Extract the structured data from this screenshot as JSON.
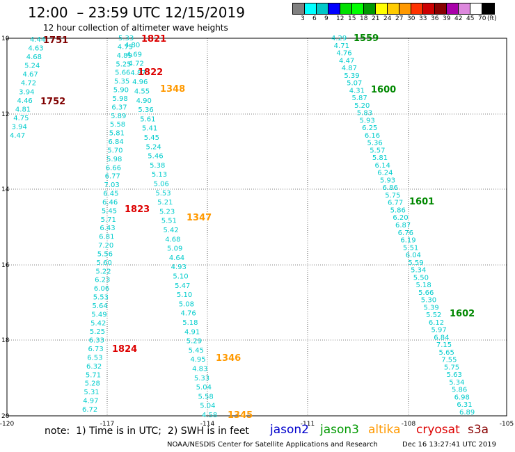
{
  "header": {
    "title": "12:00  – 23:59 UTC 12/15/2019",
    "subtitle": "12 hour collection of altimeter wave heights"
  },
  "color_scale": {
    "colors": [
      "#808080",
      "#00ffff",
      "#00c8c8",
      "#0000ff",
      "#00e000",
      "#00ff00",
      "#009900",
      "#ffff00",
      "#ffcc00",
      "#ff9900",
      "#ff3300",
      "#cc0000",
      "#880000",
      "#aa00aa",
      "#dd88dd",
      "#ffffff",
      "#000000"
    ],
    "labels": [
      "3",
      "6",
      "9",
      "12",
      "15",
      "18",
      "21",
      "24",
      "27",
      "30",
      "33",
      "36",
      "39",
      "42",
      "45",
      "70",
      "(ft)"
    ]
  },
  "map": {
    "x_ticks": [
      "-120",
      "-117",
      "-114",
      "-111",
      "-108",
      "-105"
    ],
    "y_ticks": [
      "10",
      "12",
      "14",
      "16",
      "18",
      "20"
    ],
    "tracks": [
      {
        "color": "#00cccc",
        "values": [
          "4.44",
          "4.63",
          "4.68",
          "5.24",
          "4.67",
          "4.72",
          "3.94",
          "4.46",
          "4.81",
          "4.75",
          "3.94",
          "4.47"
        ]
      },
      {
        "color": "#00cccc",
        "values": [
          "5.33",
          "4.75",
          "4.89",
          "5.25",
          "5.66",
          "5.35",
          "5.90",
          "5.98",
          "6.37",
          "5.89",
          "5.58",
          "5.81",
          "6.84",
          "5.70",
          "5.98",
          "6.66",
          "6.77",
          "7.03",
          "6.45",
          "6.46",
          "5.45",
          "5.71",
          "6.43",
          "6.81",
          "7.20",
          "5.56",
          "5.60",
          "5.22",
          "6.23",
          "6.06",
          "5.53",
          "5.64",
          "5.49",
          "5.42",
          "5.25",
          "6.33",
          "6.73",
          "6.53",
          "6.32",
          "5.71",
          "5.28",
          "5.31",
          "4.97",
          "6.72"
        ]
      },
      {
        "color": "#00cccc",
        "values": [
          "4.80",
          "4.69",
          "4.72",
          "4.87",
          "4.96",
          "4.55",
          "4.90",
          "5.36",
          "5.61",
          "5.41",
          "5.45",
          "5.24",
          "5.46",
          "5.38",
          "5.13",
          "5.06",
          "5.53",
          "5.21",
          "5.23",
          "5.51",
          "5.42",
          "4.68",
          "5.09",
          "4.64",
          "4.93",
          "5.10",
          "5.47",
          "5.10",
          "5.08",
          "4.76",
          "5.18",
          "4.91",
          "5.29",
          "5.45",
          "4.95",
          "4.83",
          "5.33",
          "5.04",
          "5.58",
          "5.04",
          "4.58"
        ]
      },
      {
        "color": "#00cccc",
        "values": [
          "4.29",
          "4.71",
          "4.76",
          "4.47",
          "4.87",
          "5.39",
          "5.07",
          "4.31",
          "5.87",
          "5.20",
          "5.83",
          "5.93",
          "6.25",
          "6.16",
          "5.36",
          "5.57",
          "5.81",
          "6.14",
          "6.24",
          "5.93",
          "6.86",
          "5.75",
          "6.77",
          "5.86",
          "6.20",
          "6.87",
          "6.76",
          "6.19",
          "5.51",
          "6.04",
          "5.59",
          "5.34",
          "5.50",
          "5.18",
          "5.66",
          "5.30",
          "5.39",
          "5.52",
          "6.12",
          "5.97",
          "6.84",
          "7.15",
          "5.65",
          "7.55",
          "5.75",
          "5.63",
          "5.34",
          "5.86",
          "6.98",
          "6.31",
          "6.89"
        ]
      }
    ],
    "time_labels": [
      {
        "text": "1751",
        "color": "#800000"
      },
      {
        "text": "1752",
        "color": "#800000"
      },
      {
        "text": "1821",
        "color": "#dd0000"
      },
      {
        "text": "1822",
        "color": "#dd0000"
      },
      {
        "text": "1823",
        "color": "#dd0000"
      },
      {
        "text": "1824",
        "color": "#dd0000"
      },
      {
        "text": "1348",
        "color": "#ff9900"
      },
      {
        "text": "1347",
        "color": "#ff9900"
      },
      {
        "text": "1346",
        "color": "#ff9900"
      },
      {
        "text": "1345",
        "color": "#ff9900"
      },
      {
        "text": "1559",
        "color": "#008800"
      },
      {
        "text": "1600",
        "color": "#008800"
      },
      {
        "text": "1601",
        "color": "#008800"
      },
      {
        "text": "1602",
        "color": "#008800"
      }
    ]
  },
  "footer": {
    "note": "note:  1) Time is in UTC;  2) SWH is in feet",
    "satellites": [
      {
        "name": "jason2",
        "color": "#0000cc"
      },
      {
        "name": "jason3",
        "color": "#009900"
      },
      {
        "name": "altika",
        "color": "#ff9900"
      },
      {
        "name": "cryosat",
        "color": "#dd0000"
      },
      {
        "name": "s3a",
        "color": "#880000"
      }
    ],
    "credit": "NOAA/NESDIS Center for Satellite Applications and Research",
    "timestamp": "Dec 16 13:27:41 UTC 2019"
  }
}
